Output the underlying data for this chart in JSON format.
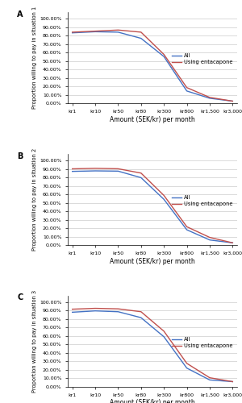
{
  "x_labels": [
    "kr1",
    "kr10",
    "kr50",
    "kr80",
    "kr300",
    "kr800",
    "kr1,500",
    "kr3,000"
  ],
  "panel_A": {
    "label": "A",
    "ylabel": "Proportion willing to pay in situation 1",
    "all": [
      0.835,
      0.848,
      0.843,
      0.77,
      0.555,
      0.148,
      0.062,
      0.028
    ],
    "entacapone": [
      0.843,
      0.855,
      0.868,
      0.843,
      0.58,
      0.188,
      0.072,
      0.028
    ]
  },
  "panel_B": {
    "label": "B",
    "ylabel": "Proportion willing to pay in situation 2",
    "all": [
      0.872,
      0.878,
      0.875,
      0.798,
      0.542,
      0.182,
      0.062,
      0.028
    ],
    "entacapone": [
      0.902,
      0.908,
      0.903,
      0.852,
      0.588,
      0.218,
      0.092,
      0.028
    ]
  },
  "panel_C": {
    "label": "C",
    "ylabel": "Proportion willing to pay in situation 3",
    "all": [
      0.882,
      0.898,
      0.888,
      0.818,
      0.592,
      0.222,
      0.082,
      0.062
    ],
    "entacapone": [
      0.918,
      0.928,
      0.922,
      0.888,
      0.658,
      0.278,
      0.108,
      0.062
    ]
  },
  "color_all": "#4472C4",
  "color_entacapone": "#C0504D",
  "xlabel": "Amount (SEK/kr) per month",
  "legend_all": "All",
  "legend_entacapone": "Using entacapone",
  "yticks": [
    0.0,
    0.1,
    0.2,
    0.3,
    0.4,
    0.5,
    0.6,
    0.7,
    0.8,
    0.9,
    1.0
  ],
  "ytick_labels": [
    "0.00%",
    "10.00%",
    "20.00%",
    "30.00%",
    "40.00%",
    "50.00%",
    "60.00%",
    "70.00%",
    "80.00%",
    "90.00%",
    "100.00%"
  ]
}
